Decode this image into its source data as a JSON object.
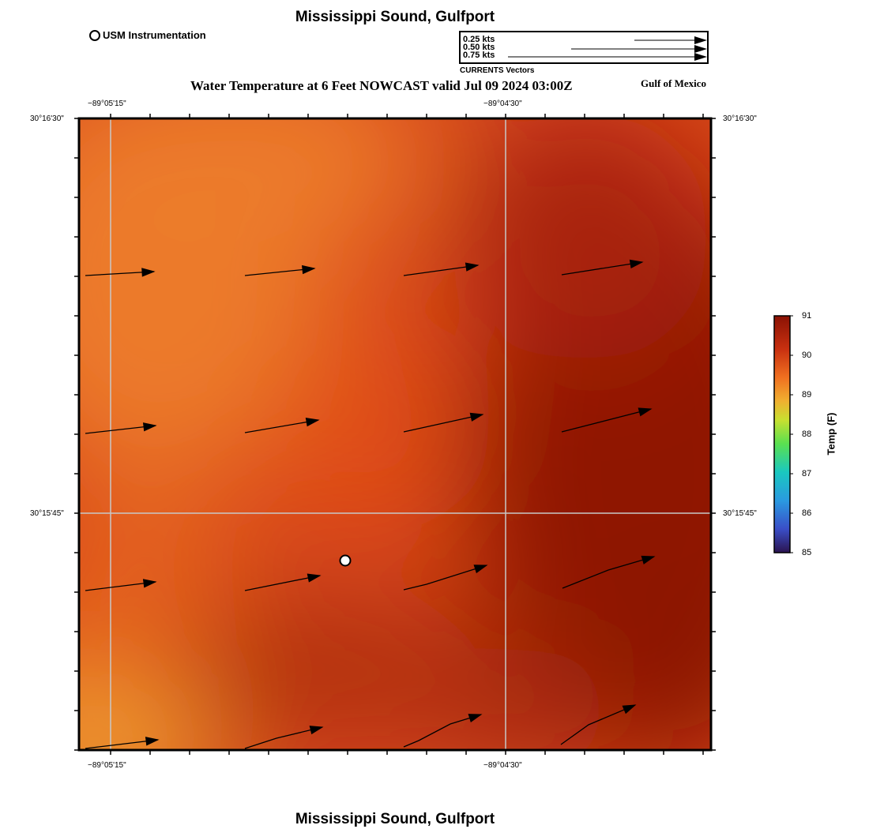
{
  "header": {
    "title": "Mississippi Sound, Gulfport",
    "subtitle": "Water Temperature at 6 Feet NOWCAST valid Jul 09 2024 03:00Z",
    "region_label": "Gulf of Mexico",
    "instrument_legend": "USM Instrumentation"
  },
  "vector_legend": {
    "title": "CURRENTS Vectors",
    "entries": [
      {
        "label": "0.25 kts",
        "speed_kts": 0.25
      },
      {
        "label": "0.50 kts",
        "speed_kts": 0.5
      },
      {
        "label": "0.75 kts",
        "speed_kts": 0.75
      }
    ]
  },
  "map": {
    "lon_ticks": [
      "−89°05'15\"",
      "−89°04'30\""
    ],
    "lat_ticks": [
      "30°16'30\"",
      "30°15'45\""
    ]
  },
  "colorbar": {
    "label": "Temp (F)",
    "min": 85,
    "max": 91,
    "ticks": [
      "91",
      "90",
      "89",
      "88",
      "87",
      "86",
      "85"
    ]
  },
  "footer": {
    "title": "Mississippi Sound, Gulfport"
  },
  "colors": {
    "field_warm": "#e65a18",
    "field_hot": "#8f1405",
    "field_light": "#f0a030",
    "grid": "#c8c8c8",
    "frame": "#000000"
  }
}
